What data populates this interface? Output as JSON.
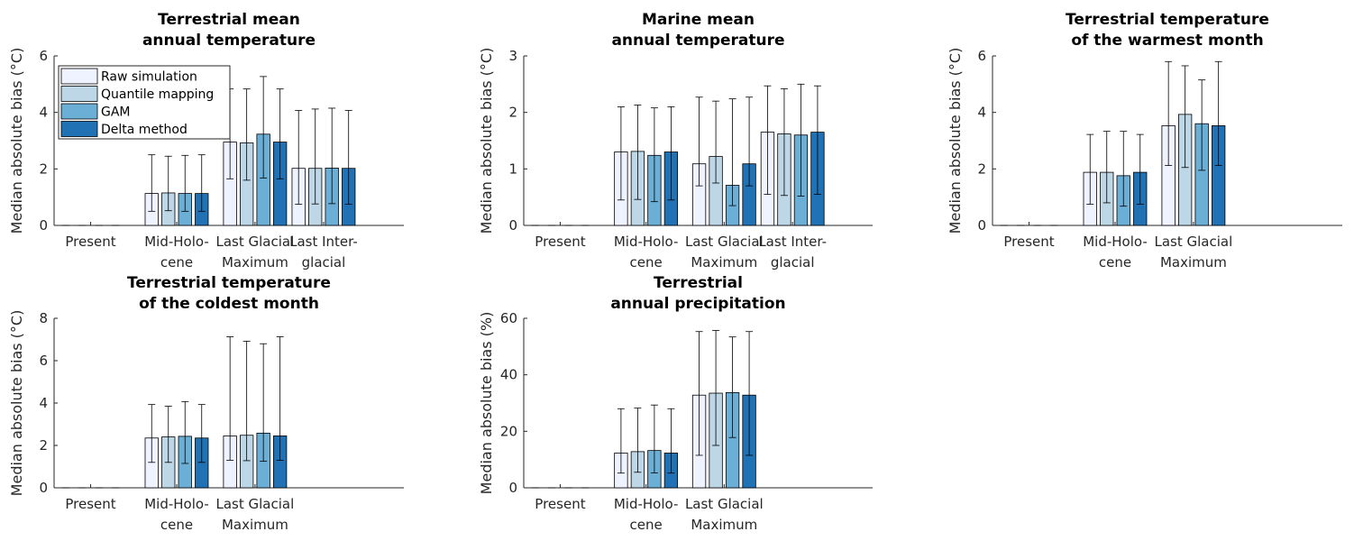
{
  "legend": [
    {
      "label": "Raw simulation",
      "color": "#eff3ff"
    },
    {
      "label": "Quantile mapping",
      "color": "#bdd7e7"
    },
    {
      "label": "GAM",
      "color": "#6baed6"
    },
    {
      "label": "Delta method",
      "color": "#2171b5"
    }
  ],
  "chart_data": [
    {
      "type": "bar",
      "title": [
        "Terrestrial mean",
        "annual temperature"
      ],
      "ylabel": "Median absolute bias (°C)",
      "ylim": [
        0,
        6
      ],
      "yticks": [
        0,
        2,
        4,
        6
      ],
      "categories": [
        [
          "Present"
        ],
        [
          "Mid-Holo-",
          "cene"
        ],
        [
          "Last Glacial",
          "Maximum"
        ],
        [
          "Last Inter-",
          "glacial"
        ]
      ],
      "series": [
        {
          "name": "Raw simulation",
          "values": [
            0,
            1.13,
            2.95,
            2.02
          ],
          "err_low": [
            0,
            0.5,
            1.65,
            0.75
          ],
          "err_high": [
            0,
            2.5,
            4.83,
            4.07
          ]
        },
        {
          "name": "Quantile mapping",
          "values": [
            0,
            1.15,
            2.92,
            2.02
          ],
          "err_low": [
            0,
            0.52,
            1.6,
            0.76
          ],
          "err_high": [
            0,
            2.45,
            4.83,
            4.12
          ]
        },
        {
          "name": "GAM",
          "values": [
            0,
            1.13,
            3.23,
            2.03
          ],
          "err_low": [
            0,
            0.5,
            1.68,
            0.77
          ],
          "err_high": [
            0,
            2.48,
            5.27,
            4.15
          ]
        },
        {
          "name": "Delta method",
          "values": [
            0,
            1.13,
            2.95,
            2.02
          ],
          "err_low": [
            0,
            0.5,
            1.65,
            0.75
          ],
          "err_high": [
            0,
            2.5,
            4.83,
            4.07
          ]
        }
      ]
    },
    {
      "type": "bar",
      "title": [
        "Marine mean",
        "annual temperature"
      ],
      "ylabel": "Median absolute bias (°C)",
      "ylim": [
        0,
        3
      ],
      "yticks": [
        0,
        1,
        2,
        3
      ],
      "categories": [
        [
          "Present"
        ],
        [
          "Mid-Holo-",
          "cene"
        ],
        [
          "Last Glacial",
          "Maximum"
        ],
        [
          "Last Inter-",
          "glacial"
        ]
      ],
      "series": [
        {
          "name": "Raw simulation",
          "values": [
            0,
            1.3,
            1.09,
            1.65
          ],
          "err_low": [
            0,
            0.45,
            0.7,
            0.55
          ],
          "err_high": [
            0,
            2.1,
            2.27,
            2.47
          ]
        },
        {
          "name": "Quantile mapping",
          "values": [
            0,
            1.31,
            1.22,
            1.62
          ],
          "err_low": [
            0,
            0.46,
            0.75,
            0.53
          ],
          "err_high": [
            0,
            2.13,
            2.2,
            2.42
          ]
        },
        {
          "name": "GAM",
          "values": [
            0,
            1.24,
            0.71,
            1.6
          ],
          "err_low": [
            0,
            0.42,
            0.35,
            0.52
          ],
          "err_high": [
            0,
            2.08,
            2.24,
            2.5
          ]
        },
        {
          "name": "Delta method",
          "values": [
            0,
            1.3,
            1.09,
            1.65
          ],
          "err_low": [
            0,
            0.45,
            0.7,
            0.55
          ],
          "err_high": [
            0,
            2.1,
            2.27,
            2.47
          ]
        }
      ]
    },
    {
      "type": "bar",
      "title": [
        "Terrestrial temperature",
        "of the warmest month"
      ],
      "ylabel": "Median absolute bias (°C)",
      "ylim": [
        0,
        6
      ],
      "yticks": [
        0,
        2,
        4,
        6
      ],
      "categories": [
        [
          "Present"
        ],
        [
          "Mid-Holo-",
          "cene"
        ],
        [
          "Last Glacial",
          "Maximum"
        ]
      ],
      "series": [
        {
          "name": "Raw simulation",
          "values": [
            0,
            1.88,
            3.53
          ],
          "err_low": [
            0,
            0.75,
            2.12
          ],
          "err_high": [
            0,
            3.22,
            5.8
          ]
        },
        {
          "name": "Quantile mapping",
          "values": [
            0,
            1.88,
            3.93
          ],
          "err_low": [
            0,
            0.8,
            2.05
          ],
          "err_high": [
            0,
            3.33,
            5.65
          ]
        },
        {
          "name": "GAM",
          "values": [
            0,
            1.76,
            3.6
          ],
          "err_low": [
            0,
            0.68,
            1.95
          ],
          "err_high": [
            0,
            3.33,
            5.15
          ]
        },
        {
          "name": "Delta method",
          "values": [
            0,
            1.88,
            3.53
          ],
          "err_low": [
            0,
            0.75,
            2.12
          ],
          "err_high": [
            0,
            3.22,
            5.8
          ]
        }
      ]
    },
    {
      "type": "bar",
      "title": [
        "Terrestrial temperature",
        "of the coldest month"
      ],
      "ylabel": "Median absolute bias (°C)",
      "ylim": [
        0,
        8
      ],
      "yticks": [
        0,
        2,
        4,
        6,
        8
      ],
      "categories": [
        [
          "Present"
        ],
        [
          "Mid-Holo-",
          "cene"
        ],
        [
          "Last Glacial",
          "Maximum"
        ]
      ],
      "series": [
        {
          "name": "Raw simulation",
          "values": [
            0,
            2.35,
            2.45
          ],
          "err_low": [
            0,
            1.2,
            1.3
          ],
          "err_high": [
            0,
            3.93,
            7.13
          ]
        },
        {
          "name": "Quantile mapping",
          "values": [
            0,
            2.4,
            2.48
          ],
          "err_low": [
            0,
            1.2,
            1.28
          ],
          "err_high": [
            0,
            3.85,
            6.92
          ]
        },
        {
          "name": "GAM",
          "values": [
            0,
            2.43,
            2.58
          ],
          "err_low": [
            0,
            1.15,
            1.25
          ],
          "err_high": [
            0,
            4.07,
            6.8
          ]
        },
        {
          "name": "Delta method",
          "values": [
            0,
            2.35,
            2.45
          ],
          "err_low": [
            0,
            1.2,
            1.3
          ],
          "err_high": [
            0,
            3.93,
            7.13
          ]
        }
      ]
    },
    {
      "type": "bar",
      "title": [
        "Terrestrial",
        "annual precipitation"
      ],
      "ylabel": "Median absolute bias (%)",
      "ylim": [
        0,
        60
      ],
      "yticks": [
        0,
        20,
        40,
        60
      ],
      "categories": [
        [
          "Present"
        ],
        [
          "Mid-Holo-",
          "cene"
        ],
        [
          "Last Glacial",
          "Maximum"
        ]
      ],
      "series": [
        {
          "name": "Raw simulation",
          "values": [
            0,
            12.3,
            32.8
          ],
          "err_low": [
            0,
            5.2,
            11.5
          ],
          "err_high": [
            0,
            28,
            55.3
          ]
        },
        {
          "name": "Quantile mapping",
          "values": [
            0,
            12.8,
            33.5
          ],
          "err_low": [
            0,
            5.5,
            15
          ],
          "err_high": [
            0,
            28.2,
            55.7
          ]
        },
        {
          "name": "GAM",
          "values": [
            0,
            13.2,
            33.7
          ],
          "err_low": [
            0,
            5.3,
            17.8
          ],
          "err_high": [
            0,
            29.3,
            53.4
          ]
        },
        {
          "name": "Delta method",
          "values": [
            0,
            12.3,
            32.8
          ],
          "err_low": [
            0,
            5.2,
            11.5
          ],
          "err_high": [
            0,
            28,
            55.3
          ]
        }
      ]
    }
  ]
}
